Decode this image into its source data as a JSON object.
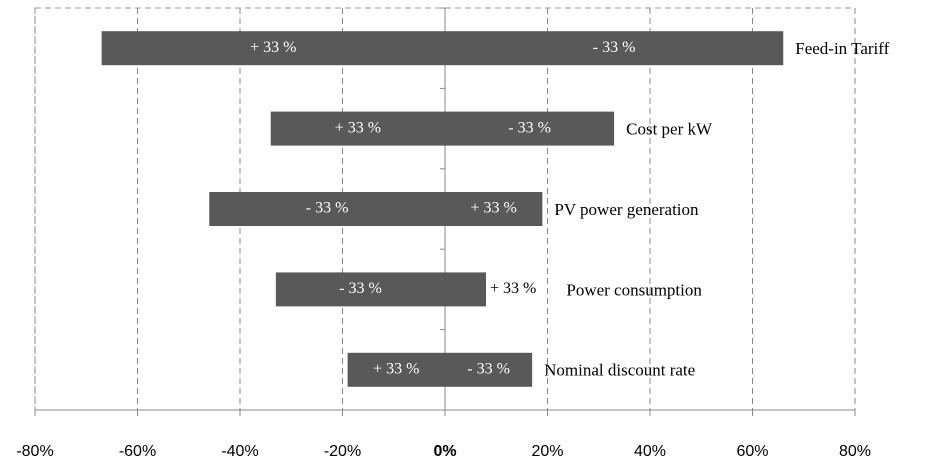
{
  "chart_data": {
    "type": "tornado",
    "categories": [
      "Feed-in Tariff",
      "Cost per kW",
      "PV power generation",
      "Power consumption",
      "Nominal discount rate"
    ],
    "series": [
      {
        "color": "#595959",
        "values": [
          -67,
          -34,
          -46,
          -33,
          -19
        ],
        "change_labels": [
          "+ 33 %",
          "+ 33 %",
          "- 33 %",
          "- 33 %",
          "+ 33 %"
        ]
      },
      {
        "color": "#595959",
        "values": [
          66,
          33,
          19,
          8,
          17
        ],
        "change_labels": [
          "- 33 %",
          "- 33 %",
          "+ 33 %",
          "+ 33 %",
          "- 33 %"
        ]
      }
    ],
    "xlim": [
      -80,
      80
    ],
    "xticks": [
      {
        "value": -80,
        "label": "-80%"
      },
      {
        "value": -60,
        "label": "-60%"
      },
      {
        "value": -40,
        "label": "-40%"
      },
      {
        "value": -20,
        "label": "-20%"
      },
      {
        "value": 0,
        "label": "0%"
      },
      {
        "value": 20,
        "label": "20%"
      },
      {
        "value": 40,
        "label": "40%"
      },
      {
        "value": 60,
        "label": "60%"
      },
      {
        "value": 80,
        "label": "80%"
      }
    ],
    "grid": true
  }
}
